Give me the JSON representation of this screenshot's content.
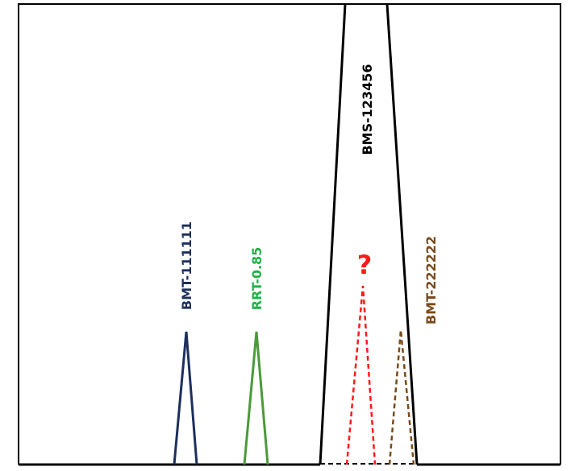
{
  "peaks": [
    {
      "label": "BMT-111111"
    },
    {
      "label": "RRT-0.85"
    },
    {
      "label": "BMS-123456"
    },
    {
      "label": "?"
    },
    {
      "label": "BMT-222222"
    }
  ]
}
